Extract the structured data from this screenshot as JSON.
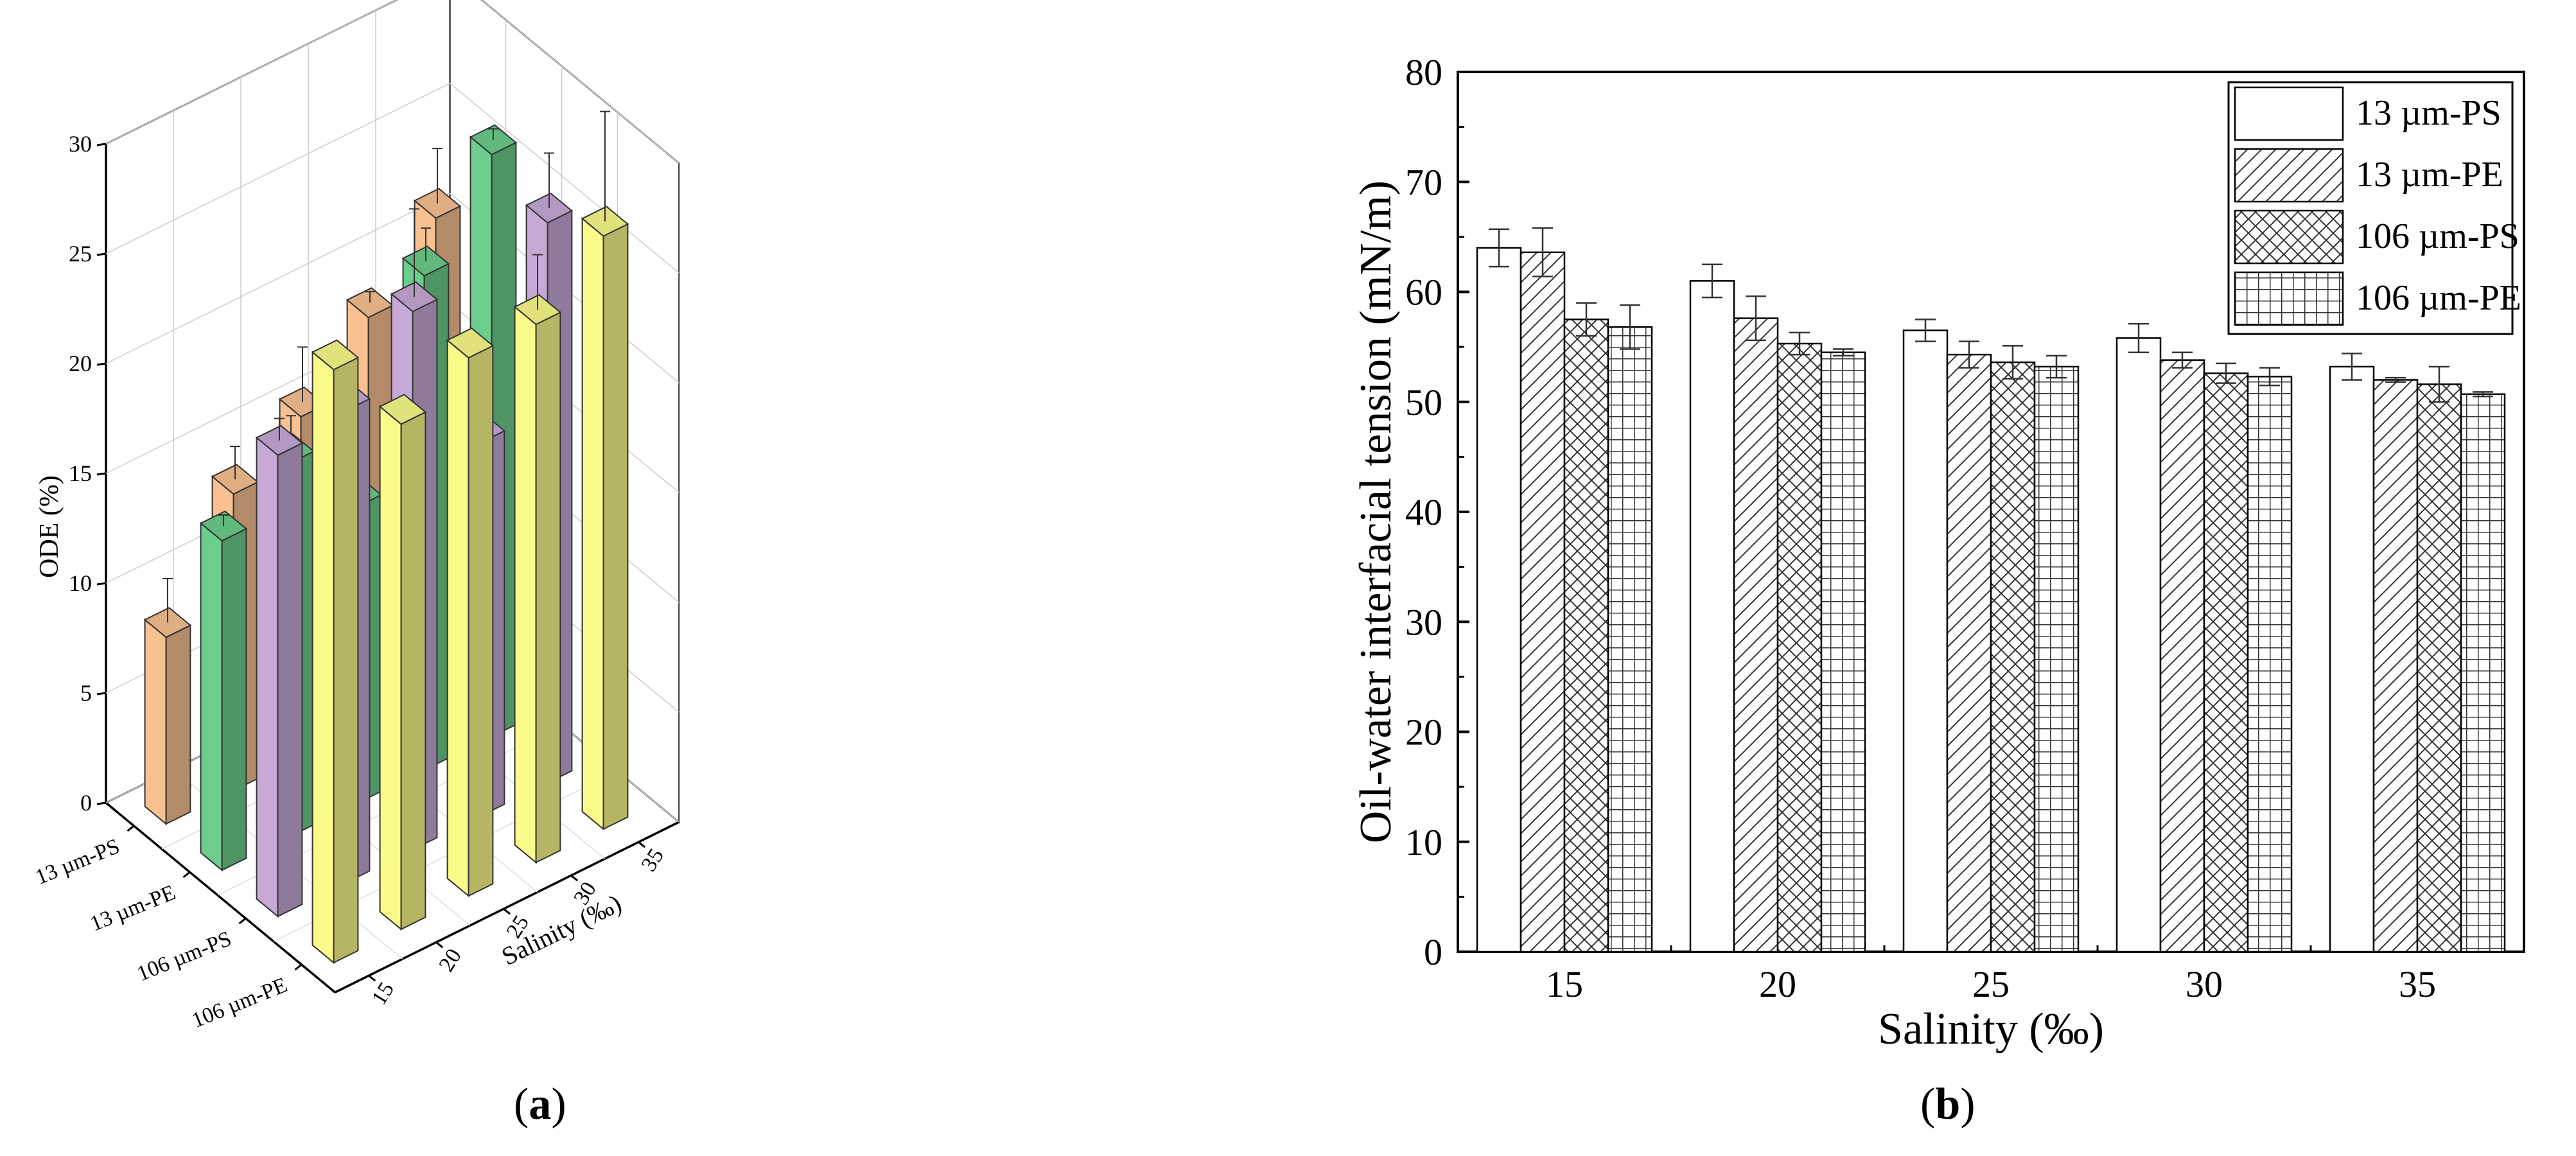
{
  "panels": {
    "a_letter": "a",
    "b_letter": "b"
  },
  "colors": {
    "13 µm-PS": "#f9c192",
    "13 µm-PE": "#6ccd8c",
    "106 µm-PS": "#c7a9d8",
    "106 µm-PE": "#fbfb8a"
  },
  "chart_data": [
    {
      "type": "bar3d",
      "panel": "a",
      "zlabel": "ODE (%)",
      "ylabel": "Salinity (‰)",
      "zlim": [
        0,
        30
      ],
      "zticks": [
        0,
        5,
        10,
        15,
        20,
        25,
        30
      ],
      "salinity_ticks": [
        "15",
        "20",
        "25",
        "30",
        "35"
      ],
      "salinity": [
        15,
        20,
        25,
        30,
        35
      ],
      "series": [
        {
          "name": "13 µm-PS",
          "values": [
            8.5,
            13.5,
            15.5,
            18.5,
            21.5
          ],
          "errors": [
            2.0,
            1.5,
            2.5,
            0.5,
            2.5
          ]
        },
        {
          "name": "13 µm-PE",
          "values": [
            15.0,
            17.0,
            13.5,
            22.5,
            26.5
          ],
          "errors": [
            0.5,
            1.5,
            0.3,
            1.5,
            0.5
          ]
        },
        {
          "name": "106 µm-PS",
          "values": [
            21.0,
            21.5,
            24.5,
            17.0,
            25.5
          ],
          "errors": [
            1.0,
            1.2,
            4.0,
            2.5,
            2.5
          ]
        },
        {
          "name": "106 µm-PE",
          "values": [
            27.0,
            23.0,
            24.5,
            24.5,
            27.0
          ],
          "errors": [
            0,
            0,
            0,
            2.5,
            5.0
          ]
        }
      ]
    },
    {
      "type": "bar",
      "panel": "b",
      "xlabel": "Salinity (‰)",
      "ylabel": "Oil-water interfacial tension (mN/m)",
      "ylim": [
        0,
        80
      ],
      "yticks": [
        0,
        10,
        20,
        30,
        40,
        50,
        60,
        70,
        80
      ],
      "categories": [
        "15",
        "20",
        "25",
        "30",
        "35"
      ],
      "legend_position": "top-right",
      "series": [
        {
          "name": "13 µm-PS",
          "pattern": "none",
          "values": [
            64.0,
            61.0,
            56.5,
            55.8,
            53.2
          ],
          "errors": [
            1.7,
            1.5,
            1.0,
            1.3,
            1.2
          ]
        },
        {
          "name": "13 µm-PE",
          "pattern": "diagonal",
          "values": [
            63.6,
            57.6,
            54.3,
            53.8,
            52.0
          ],
          "errors": [
            2.2,
            2.0,
            1.2,
            0.7,
            0.2
          ]
        },
        {
          "name": "106 µm-PS",
          "pattern": "crosshatch",
          "values": [
            57.5,
            55.3,
            53.6,
            52.6,
            51.6
          ],
          "errors": [
            1.5,
            1.0,
            1.5,
            0.9,
            1.6
          ]
        },
        {
          "name": "106 µm-PE",
          "pattern": "grid",
          "values": [
            56.8,
            54.5,
            53.2,
            52.3,
            50.7
          ],
          "errors": [
            2.0,
            0.3,
            1.0,
            0.8,
            0.2
          ]
        }
      ]
    }
  ]
}
